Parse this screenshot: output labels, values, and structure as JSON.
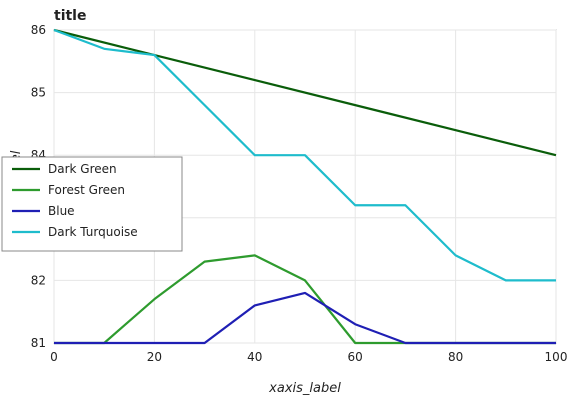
{
  "chart_data": {
    "type": "line",
    "title": "title",
    "xlabel": "xaxis_label",
    "ylabel": "yaxis_label",
    "xlim": [
      0,
      100
    ],
    "ylim": [
      81,
      86
    ],
    "x_ticks": [
      0,
      20,
      40,
      60,
      80,
      100
    ],
    "y_ticks": [
      81,
      82,
      83,
      84,
      85,
      86
    ],
    "grid": true,
    "legend_position": "left",
    "series": [
      {
        "name": "Dark Green",
        "color": "#0a5d0a",
        "x": [
          0,
          100
        ],
        "y": [
          86.0,
          84.0
        ]
      },
      {
        "name": "Forest Green",
        "color": "#2e9b2e",
        "x": [
          0,
          10,
          20,
          30,
          40,
          50,
          60,
          70,
          80,
          90,
          100
        ],
        "y": [
          81.0,
          81.0,
          81.7,
          82.3,
          82.4,
          82.0,
          81.0,
          81.0,
          81.0,
          81.0,
          81.0
        ]
      },
      {
        "name": "Blue",
        "color": "#1f1fb4",
        "x": [
          0,
          10,
          20,
          30,
          40,
          50,
          60,
          70,
          80,
          90,
          100
        ],
        "y": [
          81.0,
          81.0,
          81.0,
          81.0,
          81.6,
          81.8,
          81.3,
          81.0,
          81.0,
          81.0,
          81.0
        ]
      },
      {
        "name": "Dark Turquoise",
        "color": "#1ebccc",
        "x": [
          0,
          10,
          20,
          30,
          40,
          50,
          60,
          70,
          80,
          90,
          100
        ],
        "y": [
          86.0,
          85.7,
          85.6,
          84.8,
          84.0,
          84.0,
          83.2,
          83.2,
          82.4,
          82.0,
          82.0
        ]
      }
    ]
  }
}
